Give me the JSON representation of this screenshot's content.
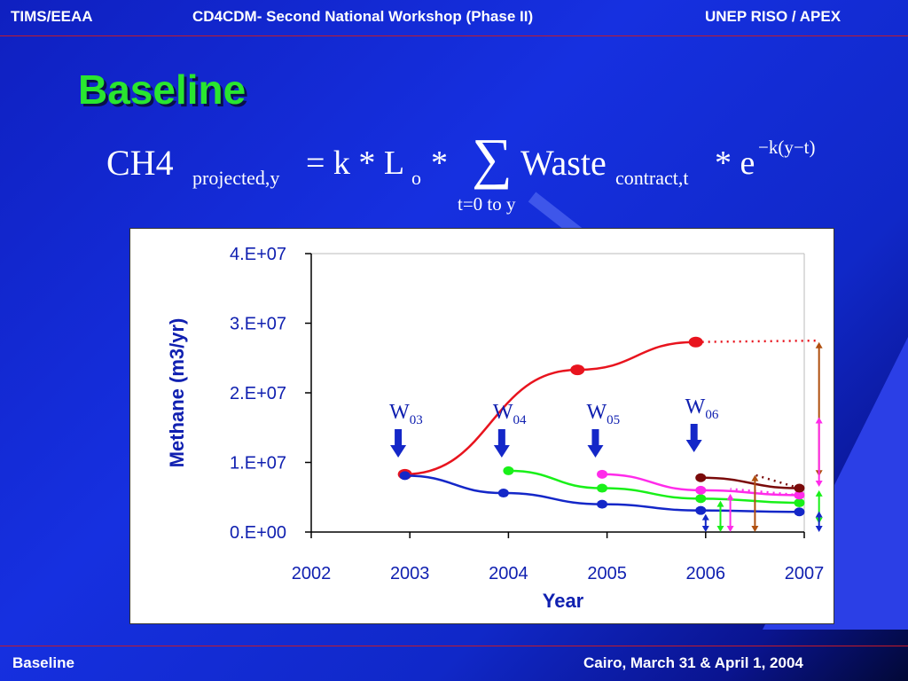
{
  "header": {
    "left": "TIMS/EEAA",
    "center": "CD4CDM- Second National Workshop (Phase II)",
    "right": "UNEP RISO / APEX"
  },
  "title": "Baseline",
  "formula": {
    "lhs": "CH4",
    "lhs_sub": "projected,y",
    "eq": "= k * L",
    "lo_sub": "o",
    "times1": "*",
    "sigma": "∑",
    "sum_sub": "t=0 to y",
    "waste": "Waste",
    "waste_sub": "contract,t",
    "times2": "* e",
    "exp": "−k(y−t)"
  },
  "footer": {
    "left": "Baseline",
    "right": "Cairo, March 31 & April 1, 2004"
  },
  "colors": {
    "bg_blue": "#1630e0",
    "title_green": "#29e62f",
    "header_line": "#c41a2a",
    "series_red": "#e8141e",
    "series_green": "#19f019",
    "series_magenta": "#ff2bea",
    "series_blue": "#1427c8",
    "series_brown": "#7a0a0a",
    "arrow_orange": "#b05010"
  },
  "chart_data": {
    "type": "line",
    "xlabel": "Year",
    "ylabel": "Methane (m3/yr)",
    "xlim": [
      2002,
      2007
    ],
    "ylim": [
      0,
      40000000
    ],
    "x_ticks": [
      "2002",
      "2003",
      "2004",
      "2005",
      "2006",
      "2007"
    ],
    "y_ticks": [
      "0.E+00",
      "1.E+07",
      "2.E+07",
      "3.E+07",
      "4.E+07"
    ],
    "series": [
      {
        "color": "#e8141e",
        "x": [
          2002.95,
          2004.7,
          2005.9
        ],
        "y": [
          8300000,
          23300000,
          27300000
        ],
        "dotted_to": [
          2007.15,
          27500000
        ]
      },
      {
        "color": "#19f019",
        "x": [
          2004.0,
          2004.95,
          2005.95,
          2006.95
        ],
        "y": [
          8800000,
          6300000,
          4800000,
          4200000
        ]
      },
      {
        "color": "#ff2bea",
        "x": [
          2004.95,
          2005.95,
          2006.95
        ],
        "y": [
          8300000,
          6000000,
          5300000
        ],
        "dotted_to": [
          2006.25,
          6200000
        ]
      },
      {
        "color": "#1427c8",
        "x": [
          2002.95,
          2003.95,
          2004.95,
          2005.95,
          2006.95
        ],
        "y": [
          8100000,
          5600000,
          4000000,
          3100000,
          2900000
        ]
      },
      {
        "color": "#7a0a0a",
        "x": [
          2005.95,
          2006.95
        ],
        "y": [
          7800000,
          6300000
        ],
        "dotted_to": [
          2006.5,
          8200000
        ]
      }
    ],
    "annotations": [
      {
        "label": "W",
        "sub": "03",
        "x": 2002.9
      },
      {
        "label": "W",
        "sub": "04",
        "x": 2003.95
      },
      {
        "label": "W",
        "sub": "05",
        "x": 2004.9
      },
      {
        "label": "W",
        "sub": "06",
        "x": 2005.9
      }
    ],
    "grid": false,
    "legend": "none"
  }
}
